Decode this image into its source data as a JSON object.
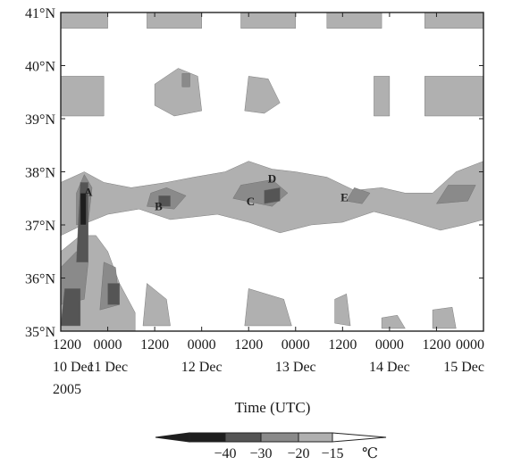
{
  "chart_data": {
    "type": "heatmap",
    "title": "",
    "xlabel": "Time (UTC)",
    "ylabel": "",
    "x_ticks": [
      {
        "pos": 0,
        "time": "1200",
        "date": "10 Dec",
        "year": "2005"
      },
      {
        "pos": 12,
        "time": "0000",
        "date": "11 Dec",
        "year": ""
      },
      {
        "pos": 24,
        "time": "1200",
        "date": "",
        "year": ""
      },
      {
        "pos": 36,
        "time": "0000",
        "date": "12 Dec",
        "year": ""
      },
      {
        "pos": 48,
        "time": "1200",
        "date": "",
        "year": ""
      },
      {
        "pos": 60,
        "time": "0000",
        "date": "13 Dec",
        "year": ""
      },
      {
        "pos": 72,
        "time": "1200",
        "date": "",
        "year": ""
      },
      {
        "pos": 84,
        "time": "0000",
        "date": "14 Dec",
        "year": ""
      },
      {
        "pos": 96,
        "time": "1200",
        "date": "",
        "year": ""
      },
      {
        "pos": 108,
        "time": "0000",
        "date": "15 Dec",
        "year": ""
      }
    ],
    "y_ticks": [
      35,
      36,
      37,
      38,
      39,
      40,
      41
    ],
    "y_tick_labels": [
      "35°N",
      "36°N",
      "37°N",
      "38°N",
      "39°N",
      "40°N",
      "41°N"
    ],
    "xlim": [
      0,
      108
    ],
    "ylim": [
      35,
      41
    ],
    "colorbar": {
      "levels": [
        -40,
        -30,
        -20,
        -15
      ],
      "labels": [
        "−40",
        "−30",
        "−20",
        "−15"
      ],
      "unit": "℃",
      "colors": [
        "#1e1e1e",
        "#555555",
        "#8a8a8a",
        "#b0b0b0",
        "#ffffff"
      ]
    },
    "contour_regions": [
      {
        "level": -15,
        "points": [
          [
            0,
            40.7
          ],
          [
            12,
            40.7
          ],
          [
            12,
            41
          ],
          [
            0,
            41
          ]
        ]
      },
      {
        "level": -15,
        "points": [
          [
            22,
            40.7
          ],
          [
            36,
            40.7
          ],
          [
            36,
            41
          ],
          [
            22,
            41
          ]
        ]
      },
      {
        "level": -15,
        "points": [
          [
            46,
            40.7
          ],
          [
            60,
            40.7
          ],
          [
            60,
            41
          ],
          [
            46,
            41
          ]
        ]
      },
      {
        "level": -15,
        "points": [
          [
            68,
            40.7
          ],
          [
            82,
            40.7
          ],
          [
            82,
            41
          ],
          [
            68,
            41
          ]
        ]
      },
      {
        "level": -15,
        "points": [
          [
            93,
            40.7
          ],
          [
            108,
            40.7
          ],
          [
            108,
            41
          ],
          [
            93,
            41
          ]
        ]
      },
      {
        "level": -15,
        "points": [
          [
            0,
            39.05
          ],
          [
            11,
            39.05
          ],
          [
            11,
            39.8
          ],
          [
            0,
            39.8
          ]
        ]
      },
      {
        "level": -15,
        "points": [
          [
            24,
            39.25
          ],
          [
            29,
            39.05
          ],
          [
            36,
            39.15
          ],
          [
            35,
            39.8
          ],
          [
            30,
            39.95
          ],
          [
            24,
            39.65
          ]
        ]
      },
      {
        "level": -20,
        "points": [
          [
            31,
            39.6
          ],
          [
            33,
            39.6
          ],
          [
            33,
            39.85
          ],
          [
            31,
            39.85
          ]
        ]
      },
      {
        "level": -15,
        "points": [
          [
            47,
            39.15
          ],
          [
            52,
            39.1
          ],
          [
            56,
            39.3
          ],
          [
            53,
            39.75
          ],
          [
            48,
            39.8
          ]
        ]
      },
      {
        "level": -15,
        "points": [
          [
            80,
            39.05
          ],
          [
            84,
            39.05
          ],
          [
            84,
            39.8
          ],
          [
            80,
            39.8
          ]
        ]
      },
      {
        "level": -15,
        "points": [
          [
            93,
            39.05
          ],
          [
            108,
            39.05
          ],
          [
            108,
            39.8
          ],
          [
            93,
            39.8
          ]
        ]
      },
      {
        "level": -15,
        "points": [
          [
            0,
            36.8
          ],
          [
            7,
            37.05
          ],
          [
            12,
            37.2
          ],
          [
            20,
            37.3
          ],
          [
            28,
            37.1
          ],
          [
            40,
            37.2
          ],
          [
            48,
            37.05
          ],
          [
            56,
            36.85
          ],
          [
            64,
            37.0
          ],
          [
            72,
            37.05
          ],
          [
            80,
            37.25
          ],
          [
            88,
            37.1
          ],
          [
            97,
            36.9
          ],
          [
            103,
            37.0
          ],
          [
            108,
            37.1
          ],
          [
            108,
            38.2
          ],
          [
            101,
            38.0
          ],
          [
            95,
            37.6
          ],
          [
            88,
            37.6
          ],
          [
            82,
            37.7
          ],
          [
            75,
            37.65
          ],
          [
            68,
            37.9
          ],
          [
            60,
            38.0
          ],
          [
            54,
            38.05
          ],
          [
            48,
            38.2
          ],
          [
            42,
            38.0
          ],
          [
            34,
            37.9
          ],
          [
            27,
            37.8
          ],
          [
            18,
            37.7
          ],
          [
            11,
            37.8
          ],
          [
            6,
            38.0
          ],
          [
            0,
            37.8
          ]
        ]
      },
      {
        "level": -15,
        "points": [
          [
            0,
            35
          ],
          [
            19,
            35
          ],
          [
            19,
            35.35
          ],
          [
            15,
            35.9
          ],
          [
            12,
            36.5
          ],
          [
            9,
            36.8
          ],
          [
            5,
            36.8
          ],
          [
            0,
            36.5
          ]
        ]
      },
      {
        "level": -15,
        "points": [
          [
            21,
            35.1
          ],
          [
            28,
            35.1
          ],
          [
            27,
            35.6
          ],
          [
            22,
            35.9
          ]
        ]
      },
      {
        "level": -15,
        "points": [
          [
            47,
            35.1
          ],
          [
            59,
            35.1
          ],
          [
            57,
            35.6
          ],
          [
            48,
            35.8
          ]
        ]
      },
      {
        "level": -15,
        "points": [
          [
            70,
            35.15
          ],
          [
            74,
            35.1
          ],
          [
            73,
            35.7
          ],
          [
            70,
            35.6
          ]
        ]
      },
      {
        "level": -15,
        "points": [
          [
            82,
            35.05
          ],
          [
            88,
            35.05
          ],
          [
            86,
            35.3
          ],
          [
            82,
            35.25
          ]
        ]
      },
      {
        "level": -15,
        "points": [
          [
            95,
            35.05
          ],
          [
            101,
            35.05
          ],
          [
            100,
            35.45
          ],
          [
            95,
            35.4
          ]
        ]
      },
      {
        "level": -20,
        "points": [
          [
            4,
            37.0
          ],
          [
            7,
            37.05
          ],
          [
            8,
            37.7
          ],
          [
            6,
            37.95
          ],
          [
            4,
            37.6
          ]
        ]
      },
      {
        "level": -20,
        "points": [
          [
            0,
            35.5
          ],
          [
            6,
            35.6
          ],
          [
            7,
            36.3
          ],
          [
            4,
            36.5
          ],
          [
            0,
            36.2
          ]
        ]
      },
      {
        "level": -20,
        "points": [
          [
            10,
            35.4
          ],
          [
            15,
            35.5
          ],
          [
            14,
            36.2
          ],
          [
            11,
            36.3
          ]
        ]
      },
      {
        "level": -20,
        "points": [
          [
            22,
            37.35
          ],
          [
            29,
            37.3
          ],
          [
            32,
            37.55
          ],
          [
            27,
            37.7
          ],
          [
            23,
            37.6
          ]
        ]
      },
      {
        "level": -20,
        "points": [
          [
            44,
            37.5
          ],
          [
            54,
            37.35
          ],
          [
            58,
            37.6
          ],
          [
            54,
            37.85
          ],
          [
            46,
            37.75
          ]
        ]
      },
      {
        "level": -20,
        "points": [
          [
            73,
            37.45
          ],
          [
            77,
            37.4
          ],
          [
            79,
            37.6
          ],
          [
            75,
            37.7
          ]
        ]
      },
      {
        "level": -20,
        "points": [
          [
            96,
            37.4
          ],
          [
            104,
            37.45
          ],
          [
            106,
            37.75
          ],
          [
            99,
            37.75
          ]
        ]
      },
      {
        "level": -30,
        "points": [
          [
            4,
            36.3
          ],
          [
            7,
            36.3
          ],
          [
            7,
            37.8
          ],
          [
            5,
            37.8
          ]
        ]
      },
      {
        "level": -30,
        "points": [
          [
            0,
            35.1
          ],
          [
            5,
            35.1
          ],
          [
            5,
            35.8
          ],
          [
            1,
            35.8
          ]
        ]
      },
      {
        "level": -30,
        "points": [
          [
            12,
            35.5
          ],
          [
            15,
            35.5
          ],
          [
            15,
            35.9
          ],
          [
            12,
            35.9
          ]
        ]
      },
      {
        "level": -30,
        "points": [
          [
            25,
            37.35
          ],
          [
            28,
            37.35
          ],
          [
            28,
            37.55
          ],
          [
            25,
            37.55
          ]
        ]
      },
      {
        "level": -30,
        "points": [
          [
            52,
            37.4
          ],
          [
            56,
            37.45
          ],
          [
            56,
            37.7
          ],
          [
            52,
            37.65
          ]
        ]
      },
      {
        "level": -40,
        "points": [
          [
            5,
            37.0
          ],
          [
            6.5,
            37.0
          ],
          [
            6.5,
            37.6
          ],
          [
            5,
            37.6
          ]
        ]
      }
    ],
    "annotations": [
      {
        "text": "A",
        "x": 7,
        "y": 37.6
      },
      {
        "text": "B",
        "x": 25,
        "y": 37.33
      },
      {
        "text": "C",
        "x": 48.5,
        "y": 37.42
      },
      {
        "text": "D",
        "x": 54,
        "y": 37.85
      },
      {
        "text": "E",
        "x": 72.5,
        "y": 37.5
      }
    ]
  }
}
